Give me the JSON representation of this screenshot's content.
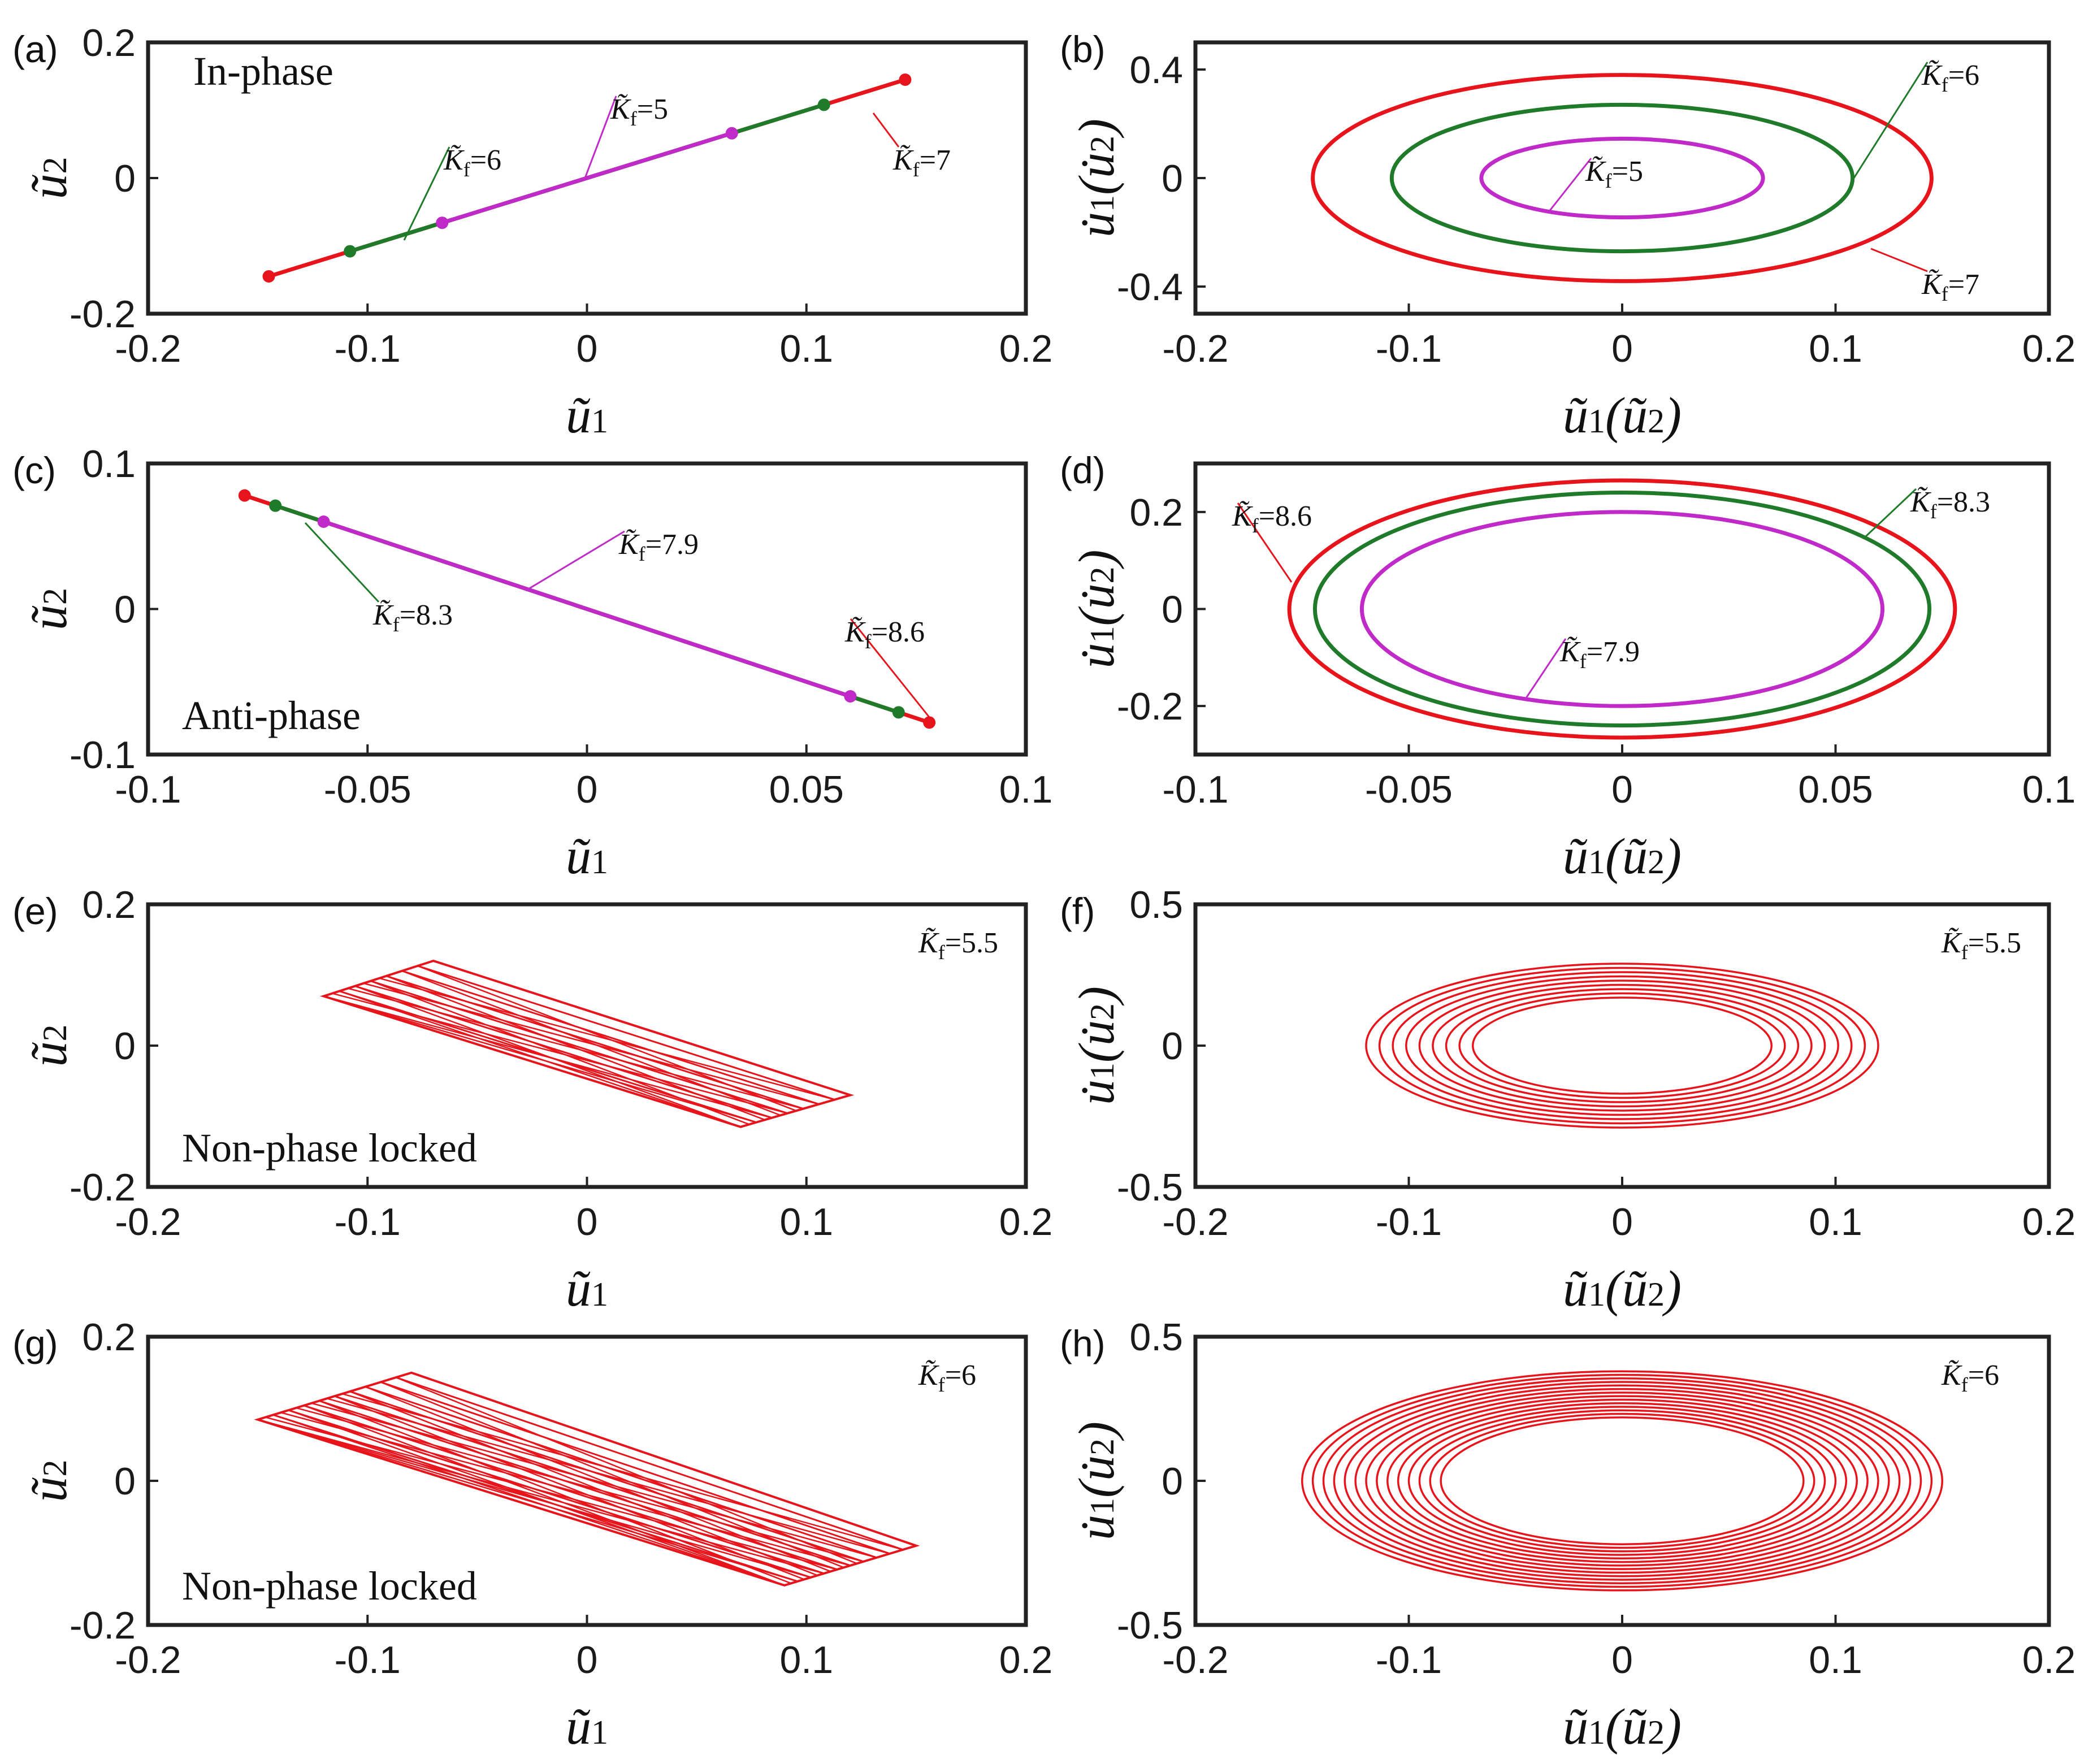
{
  "chart_data": [
    {
      "id": "a",
      "panel_label": "(a)",
      "type": "line",
      "view": "phase-plane",
      "title": "",
      "xlabel": "ũ1",
      "ylabel": "ũ2",
      "xlim": [
        -0.2,
        0.2
      ],
      "ylim": [
        -0.2,
        0.2
      ],
      "xticks": [
        -0.2,
        -0.1,
        0,
        0.1,
        0.2
      ],
      "yticks": [
        -0.2,
        0,
        0.2
      ],
      "x_tick_labels": [
        "-0.2",
        "-0.1",
        "0",
        "0.1",
        "0.2"
      ],
      "y_tick_labels": [
        "-0.2",
        "0",
        "0.2"
      ],
      "note": "In-phase",
      "series": [
        {
          "name": "K̃f=7",
          "kf": "7",
          "color": "#e8141b",
          "shape": "segment",
          "from": [
            -0.145,
            -0.145
          ],
          "to": [
            0.145,
            0.145
          ]
        },
        {
          "name": "K̃f=6",
          "kf": "6",
          "color": "#1f7a2a",
          "shape": "segment",
          "from": [
            -0.108,
            -0.108
          ],
          "to": [
            0.108,
            0.108
          ]
        },
        {
          "name": "K̃f=5",
          "kf": "5",
          "color": "#c02ac8",
          "shape": "segment",
          "from": [
            -0.066,
            -0.066
          ],
          "to": [
            0.066,
            0.066
          ]
        }
      ]
    },
    {
      "id": "b",
      "panel_label": "(b)",
      "type": "line",
      "view": "phase-plane",
      "title": "",
      "xlabel": "ũ1(ũ2)",
      "ylabel": "u̇1(u̇2)",
      "xlim": [
        -0.2,
        0.2
      ],
      "ylim": [
        -0.5,
        0.5
      ],
      "xticks": [
        -0.2,
        -0.1,
        0,
        0.1,
        0.2
      ],
      "yticks": [
        -0.4,
        0,
        0.4
      ],
      "x_tick_labels": [
        "-0.2",
        "-0.1",
        "0",
        "0.1",
        "0.2"
      ],
      "y_tick_labels": [
        "-0.4",
        "0",
        "0.4"
      ],
      "series": [
        {
          "name": "K̃f=7",
          "kf": "7",
          "color": "#e8141b",
          "shape": "ellipse",
          "rx": 0.145,
          "ry": 0.38
        },
        {
          "name": "K̃f=6",
          "kf": "6",
          "color": "#1f7a2a",
          "shape": "ellipse",
          "rx": 0.108,
          "ry": 0.27
        },
        {
          "name": "K̃f=5",
          "kf": "5",
          "color": "#c02ac8",
          "shape": "ellipse",
          "rx": 0.066,
          "ry": 0.145
        }
      ]
    },
    {
      "id": "c",
      "panel_label": "(c)",
      "type": "line",
      "view": "phase-plane",
      "title": "",
      "xlabel": "ũ1",
      "ylabel": "ũ2",
      "xlim": [
        -0.1,
        0.1
      ],
      "ylim": [
        -0.1,
        0.1
      ],
      "xticks": [
        -0.1,
        -0.05,
        0,
        0.05,
        0.1
      ],
      "yticks": [
        -0.1,
        0,
        0.1
      ],
      "x_tick_labels": [
        "-0.1",
        "-0.05",
        "0",
        "0.05",
        "0.1"
      ],
      "y_tick_labels": [
        "-0.1",
        "0",
        "0.1"
      ],
      "note": "Anti-phase",
      "series": [
        {
          "name": "K̃f=8.6",
          "kf": "8.6",
          "color": "#e8141b",
          "shape": "segment",
          "from": [
            -0.078,
            0.078
          ],
          "to": [
            0.078,
            -0.078
          ]
        },
        {
          "name": "K̃f=8.3",
          "kf": "8.3",
          "color": "#1f7a2a",
          "shape": "segment",
          "from": [
            -0.071,
            0.071
          ],
          "to": [
            0.071,
            -0.071
          ]
        },
        {
          "name": "K̃f=7.9",
          "kf": "7.9",
          "color": "#c02ac8",
          "shape": "segment",
          "from": [
            -0.06,
            0.06
          ],
          "to": [
            0.06,
            -0.06
          ]
        }
      ]
    },
    {
      "id": "d",
      "panel_label": "(d)",
      "type": "line",
      "view": "phase-plane",
      "title": "",
      "xlabel": "ũ1(ũ2)",
      "ylabel": "u̇1(u̇2)",
      "xlim": [
        -0.1,
        0.1
      ],
      "ylim": [
        -0.3,
        0.3
      ],
      "xticks": [
        -0.1,
        -0.05,
        0,
        0.05,
        0.1
      ],
      "yticks": [
        -0.2,
        0,
        0.2
      ],
      "x_tick_labels": [
        "-0.1",
        "-0.05",
        "0",
        "0.05",
        "0.1"
      ],
      "y_tick_labels": [
        "-0.2",
        "0",
        "0.2"
      ],
      "series": [
        {
          "name": "K̃f=8.6",
          "kf": "8.6",
          "color": "#e8141b",
          "shape": "ellipse",
          "rx": 0.078,
          "ry": 0.265
        },
        {
          "name": "K̃f=8.3",
          "kf": "8.3",
          "color": "#1f7a2a",
          "shape": "ellipse",
          "rx": 0.072,
          "ry": 0.24
        },
        {
          "name": "K̃f=7.9",
          "kf": "7.9",
          "color": "#c02ac8",
          "shape": "ellipse",
          "rx": 0.061,
          "ry": 0.2
        }
      ]
    },
    {
      "id": "e",
      "panel_label": "(e)",
      "type": "line",
      "view": "phase-plane",
      "title": "",
      "xlabel": "ũ1",
      "ylabel": "ũ2",
      "xlim": [
        -0.2,
        0.2
      ],
      "ylim": [
        -0.2,
        0.2
      ],
      "xticks": [
        -0.2,
        -0.1,
        0,
        0.1,
        0.2
      ],
      "yticks": [
        -0.2,
        0,
        0.2
      ],
      "x_tick_labels": [
        "-0.2",
        "-0.1",
        "0",
        "0.1",
        "0.2"
      ],
      "y_tick_labels": [
        "-0.2",
        "0",
        "0.2"
      ],
      "note": "Non-phase locked",
      "kf_label": "5.5",
      "series": [
        {
          "name": "K̃f=5.5",
          "kf": "5.5",
          "color": "#e8141b",
          "shape": "quasi-periodic-parallelogram",
          "corners": [
            [
              -0.12,
              0.07
            ],
            [
              -0.07,
              0.12
            ],
            [
              0.12,
              -0.07
            ],
            [
              0.07,
              -0.115
            ]
          ],
          "line_count": 7
        }
      ]
    },
    {
      "id": "f",
      "panel_label": "(f)",
      "type": "line",
      "view": "phase-plane",
      "title": "",
      "xlabel": "ũ1(ũ2)",
      "ylabel": "u̇1(u̇2)",
      "xlim": [
        -0.2,
        0.2
      ],
      "ylim": [
        -0.5,
        0.5
      ],
      "xticks": [
        -0.2,
        -0.1,
        0,
        0.1,
        0.2
      ],
      "yticks": [
        -0.5,
        0,
        0.5
      ],
      "x_tick_labels": [
        "-0.2",
        "-0.1",
        "0",
        "0.1",
        "0.2"
      ],
      "y_tick_labels": [
        "-0.5",
        "0",
        "0.5"
      ],
      "kf_label": "5.5",
      "series": [
        {
          "name": "K̃f=5.5",
          "kf": "5.5",
          "color": "#e8141b",
          "shape": "ellipse-band",
          "rx_range": [
            0.07,
            0.12
          ],
          "ry_range": [
            0.17,
            0.29
          ],
          "count": 9
        }
      ]
    },
    {
      "id": "g",
      "panel_label": "(g)",
      "type": "line",
      "view": "phase-plane",
      "title": "",
      "xlabel": "ũ1",
      "ylabel": "ũ2",
      "xlim": [
        -0.2,
        0.2
      ],
      "ylim": [
        -0.2,
        0.2
      ],
      "xticks": [
        -0.2,
        -0.1,
        0,
        0.1,
        0.2
      ],
      "yticks": [
        -0.2,
        0,
        0.2
      ],
      "x_tick_labels": [
        "-0.2",
        "-0.1",
        "0",
        "0.1",
        "0.2"
      ],
      "y_tick_labels": [
        "-0.2",
        "0",
        "0.2"
      ],
      "note": "Non-phase locked",
      "kf_label": "6",
      "series": [
        {
          "name": "K̃f=6",
          "kf": "6",
          "color": "#e8141b",
          "shape": "quasi-periodic-parallelogram",
          "corners": [
            [
              -0.15,
              0.085
            ],
            [
              -0.08,
              0.15
            ],
            [
              0.15,
              -0.09
            ],
            [
              0.09,
              -0.145
            ]
          ],
          "line_count": 10
        }
      ]
    },
    {
      "id": "h",
      "panel_label": "(h)",
      "type": "line",
      "view": "phase-plane",
      "title": "",
      "xlabel": "ũ1(ũ2)",
      "ylabel": "u̇1(u̇2)",
      "xlim": [
        -0.2,
        0.2
      ],
      "ylim": [
        -0.5,
        0.5
      ],
      "xticks": [
        -0.2,
        -0.1,
        0,
        0.1,
        0.2
      ],
      "yticks": [
        -0.5,
        0,
        0.5
      ],
      "x_tick_labels": [
        "-0.2",
        "-0.1",
        "0",
        "0.1",
        "0.2"
      ],
      "y_tick_labels": [
        "-0.5",
        "0",
        "0.5"
      ],
      "kf_label": "6",
      "series": [
        {
          "name": "K̃f=6",
          "kf": "6",
          "color": "#e8141b",
          "shape": "ellipse-band",
          "rx_range": [
            0.085,
            0.15
          ],
          "ry_range": [
            0.22,
            0.38
          ],
          "count": 14
        }
      ]
    }
  ]
}
